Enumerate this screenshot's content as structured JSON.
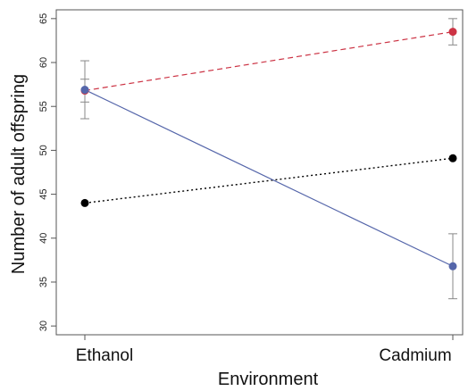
{
  "chart_data": {
    "type": "line",
    "xlabel": "Environment",
    "ylabel": "Number of adult offspring",
    "categories": [
      "Ethanol",
      "Cadmium"
    ],
    "ylim": [
      29,
      66
    ],
    "yticks": [
      "30",
      "35",
      "40",
      "45",
      "50",
      "55",
      "60",
      "65"
    ],
    "grid": false,
    "series": [
      {
        "values": [
          56.8,
          63.5
        ],
        "error": [
          1.3,
          1.5
        ],
        "color": "#cc3344",
        "line_style": "dashed"
      },
      {
        "values": [
          44.0,
          49.1
        ],
        "error": [
          0,
          0
        ],
        "color": "#000000",
        "line_style": "dotted"
      },
      {
        "values": [
          56.9,
          36.8
        ],
        "error": [
          3.3,
          3.7
        ],
        "color": "#5566aa",
        "line_style": "solid"
      }
    ]
  }
}
